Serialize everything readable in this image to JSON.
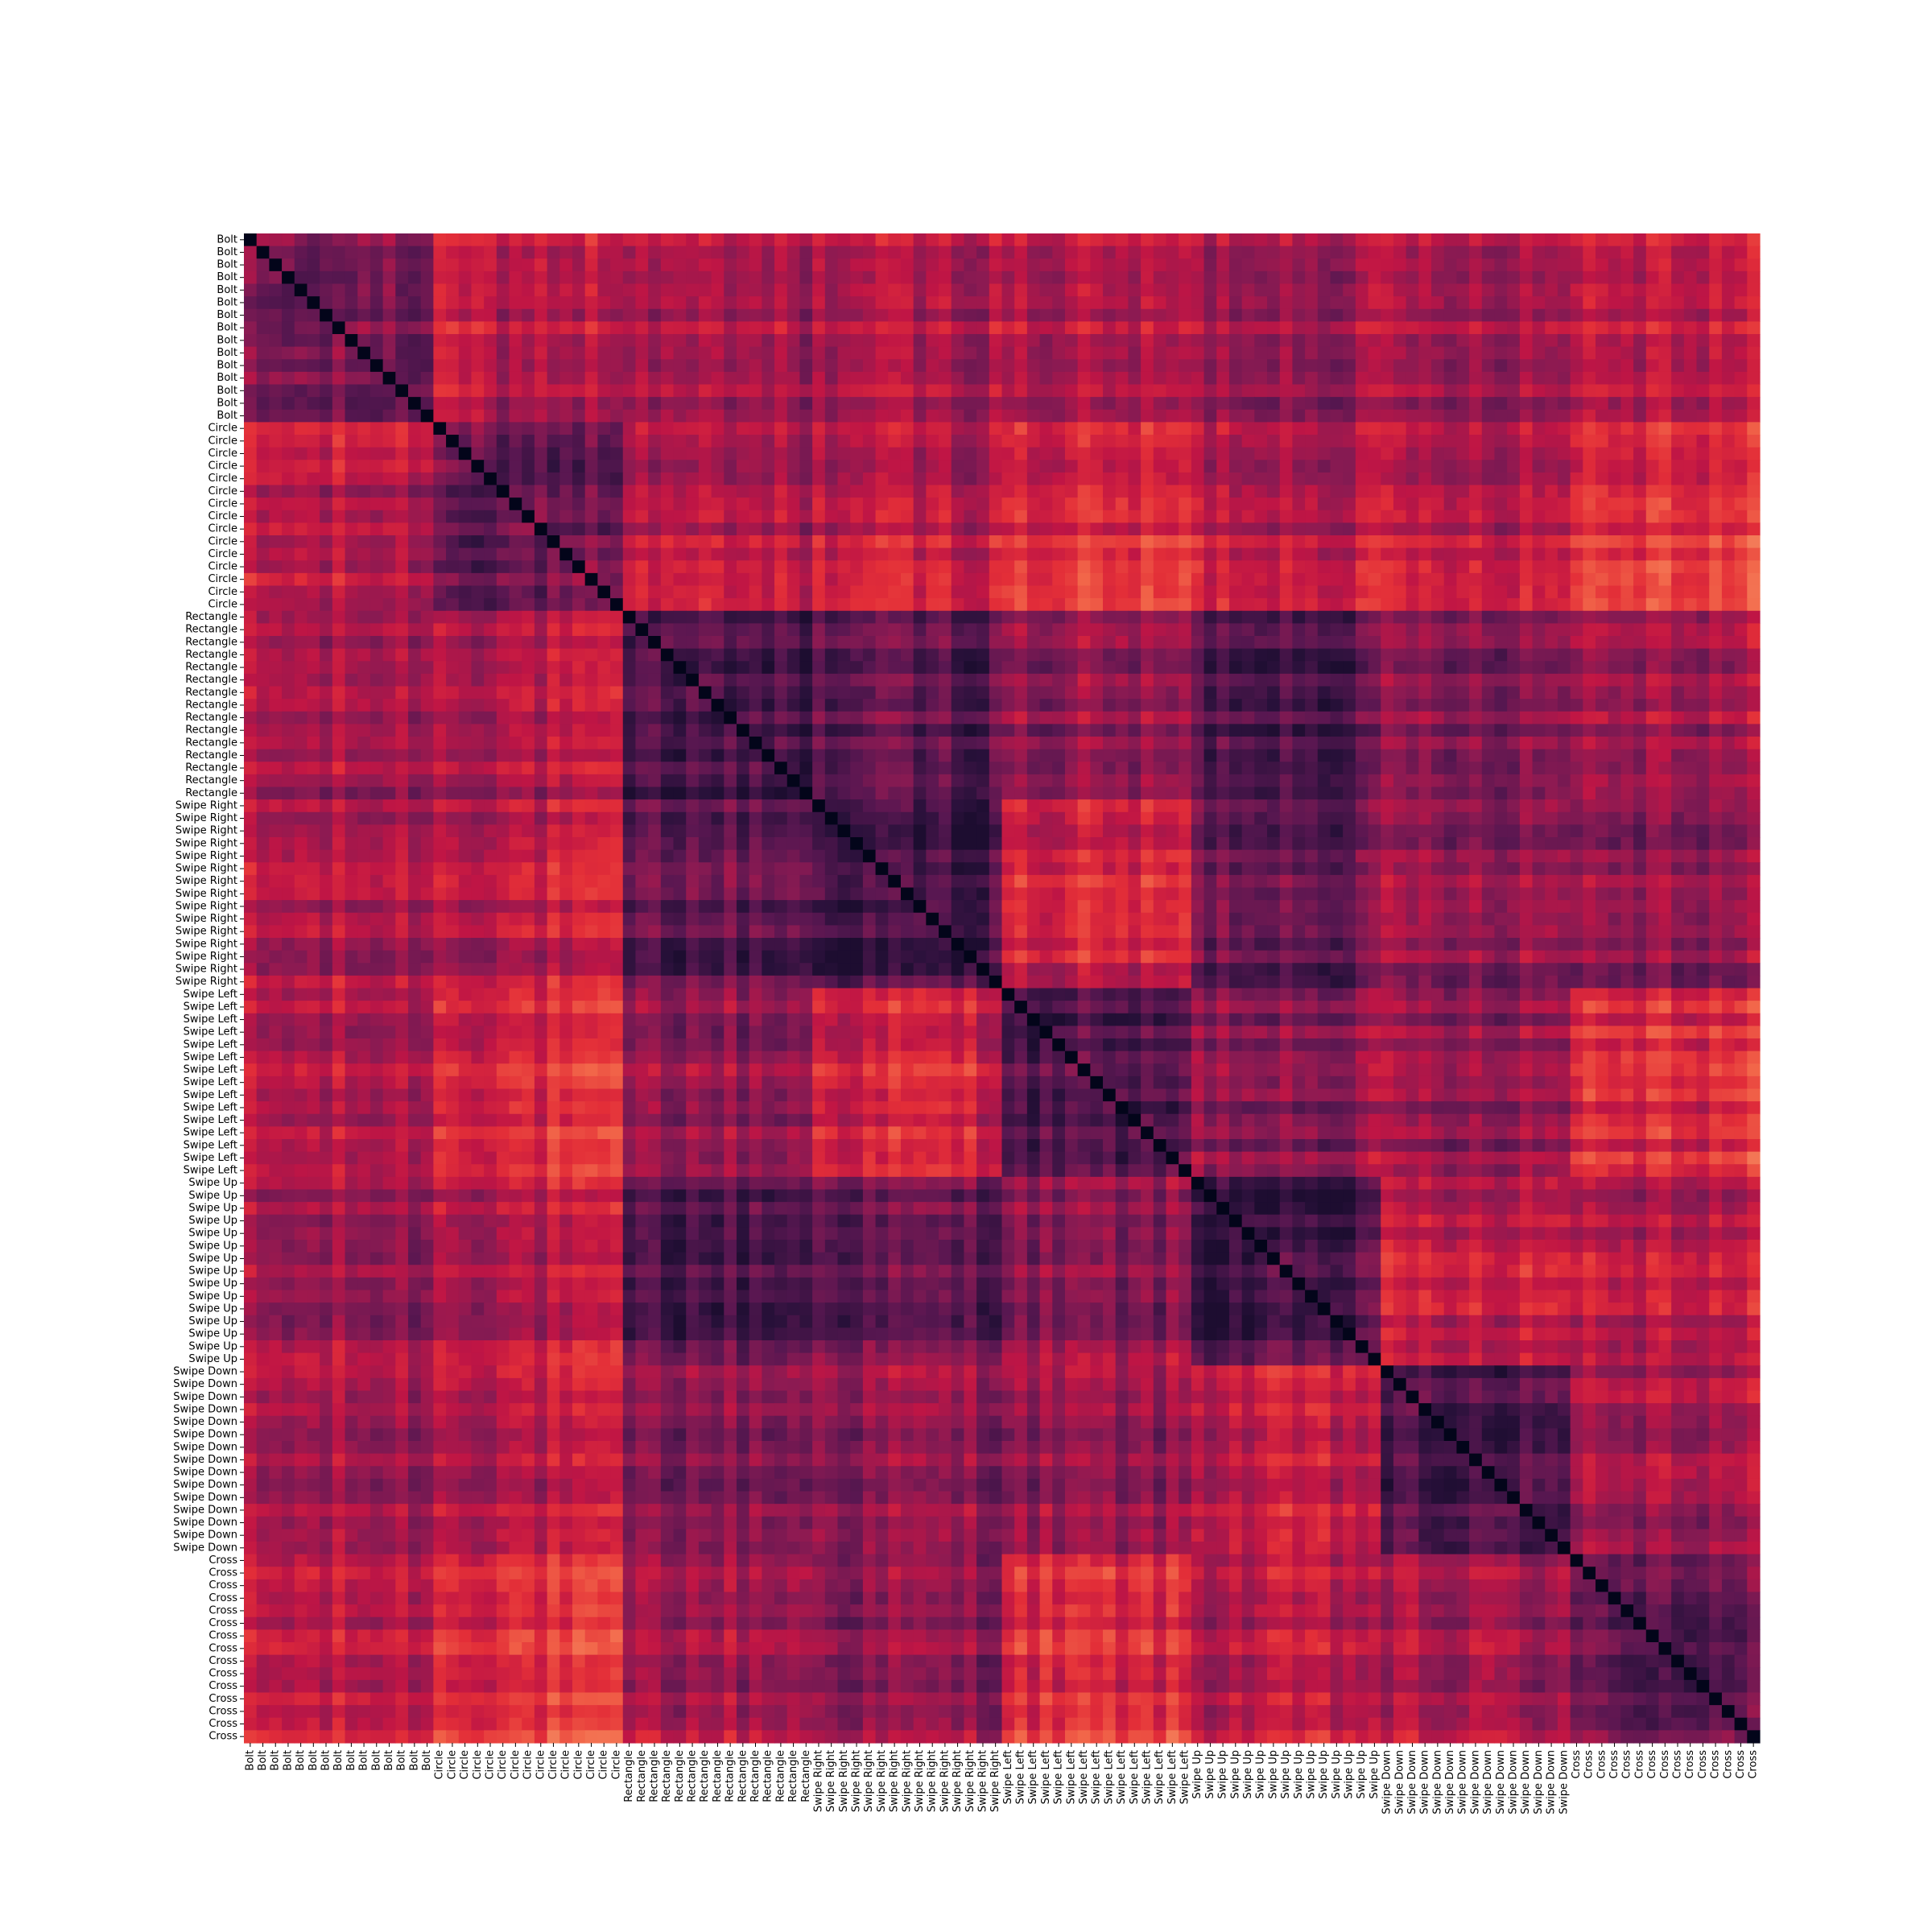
{
  "chart_data": {
    "type": "heatmap",
    "title": "",
    "xlabel": "",
    "ylabel": "",
    "colormap": "rocket",
    "colorbar": false,
    "grid": false,
    "value_range": [
      0,
      1
    ],
    "groups": [
      {
        "label": "Bolt",
        "count": 15
      },
      {
        "label": "Circle",
        "count": 15
      },
      {
        "label": "Rectangle",
        "count": 15
      },
      {
        "label": "Swipe Right",
        "count": 15
      },
      {
        "label": "Swipe Left",
        "count": 15
      },
      {
        "label": "Swipe Up",
        "count": 15
      },
      {
        "label": "Swipe Down",
        "count": 15
      },
      {
        "label": "Cross",
        "count": 15
      }
    ],
    "group_levels": [
      [
        0.3,
        0.48,
        0.42,
        0.45,
        0.45,
        0.42,
        0.43,
        0.52
      ],
      [
        0.52,
        0.3,
        0.46,
        0.5,
        0.58,
        0.5,
        0.5,
        0.63
      ],
      [
        0.42,
        0.46,
        0.2,
        0.26,
        0.38,
        0.24,
        0.37,
        0.45
      ],
      [
        0.43,
        0.5,
        0.26,
        0.18,
        0.55,
        0.3,
        0.4,
        0.4
      ],
      [
        0.42,
        0.58,
        0.38,
        0.55,
        0.2,
        0.38,
        0.4,
        0.6
      ],
      [
        0.42,
        0.5,
        0.24,
        0.3,
        0.38,
        0.2,
        0.52,
        0.5
      ],
      [
        0.4,
        0.5,
        0.37,
        0.4,
        0.4,
        0.52,
        0.22,
        0.45
      ],
      [
        0.52,
        0.63,
        0.45,
        0.4,
        0.6,
        0.5,
        0.45,
        0.28
      ]
    ]
  },
  "labels": {
    "rows": [
      "Bolt",
      "Bolt",
      "Bolt",
      "Bolt",
      "Bolt",
      "Bolt",
      "Bolt",
      "Bolt",
      "Bolt",
      "Bolt",
      "Bolt",
      "Bolt",
      "Bolt",
      "Bolt",
      "Bolt",
      "Circle",
      "Circle",
      "Circle",
      "Circle",
      "Circle",
      "Circle",
      "Circle",
      "Circle",
      "Circle",
      "Circle",
      "Circle",
      "Circle",
      "Circle",
      "Circle",
      "Circle",
      "Rectangle",
      "Rectangle",
      "Rectangle",
      "Rectangle",
      "Rectangle",
      "Rectangle",
      "Rectangle",
      "Rectangle",
      "Rectangle",
      "Rectangle",
      "Rectangle",
      "Rectangle",
      "Rectangle",
      "Rectangle",
      "Rectangle",
      "Swipe Right",
      "Swipe Right",
      "Swipe Right",
      "Swipe Right",
      "Swipe Right",
      "Swipe Right",
      "Swipe Right",
      "Swipe Right",
      "Swipe Right",
      "Swipe Right",
      "Swipe Right",
      "Swipe Right",
      "Swipe Right",
      "Swipe Right",
      "Swipe Right",
      "Swipe Left",
      "Swipe Left",
      "Swipe Left",
      "Swipe Left",
      "Swipe Left",
      "Swipe Left",
      "Swipe Left",
      "Swipe Left",
      "Swipe Left",
      "Swipe Left",
      "Swipe Left",
      "Swipe Left",
      "Swipe Left",
      "Swipe Left",
      "Swipe Left",
      "Swipe Up",
      "Swipe Up",
      "Swipe Up",
      "Swipe Up",
      "Swipe Up",
      "Swipe Up",
      "Swipe Up",
      "Swipe Up",
      "Swipe Up",
      "Swipe Up",
      "Swipe Up",
      "Swipe Up",
      "Swipe Up",
      "Swipe Up",
      "Swipe Up",
      "Swipe Down",
      "Swipe Down",
      "Swipe Down",
      "Swipe Down",
      "Swipe Down",
      "Swipe Down",
      "Swipe Down",
      "Swipe Down",
      "Swipe Down",
      "Swipe Down",
      "Swipe Down",
      "Swipe Down",
      "Swipe Down",
      "Swipe Down",
      "Swipe Down",
      "Cross",
      "Cross",
      "Cross",
      "Cross",
      "Cross",
      "Cross",
      "Cross",
      "Cross",
      "Cross",
      "Cross",
      "Cross",
      "Cross",
      "Cross",
      "Cross",
      "Cross"
    ],
    "cols": [
      "Bolt",
      "Bolt",
      "Bolt",
      "Bolt",
      "Bolt",
      "Bolt",
      "Bolt",
      "Bolt",
      "Bolt",
      "Bolt",
      "Bolt",
      "Bolt",
      "Bolt",
      "Bolt",
      "Bolt",
      "Circle",
      "Circle",
      "Circle",
      "Circle",
      "Circle",
      "Circle",
      "Circle",
      "Circle",
      "Circle",
      "Circle",
      "Circle",
      "Circle",
      "Circle",
      "Circle",
      "Circle",
      "Rectangle",
      "Rectangle",
      "Rectangle",
      "Rectangle",
      "Rectangle",
      "Rectangle",
      "Rectangle",
      "Rectangle",
      "Rectangle",
      "Rectangle",
      "Rectangle",
      "Rectangle",
      "Rectangle",
      "Rectangle",
      "Rectangle",
      "Swipe Right",
      "Swipe Right",
      "Swipe Right",
      "Swipe Right",
      "Swipe Right",
      "Swipe Right",
      "Swipe Right",
      "Swipe Right",
      "Swipe Right",
      "Swipe Right",
      "Swipe Right",
      "Swipe Right",
      "Swipe Right",
      "Swipe Right",
      "Swipe Right",
      "Swipe Left",
      "Swipe Left",
      "Swipe Left",
      "Swipe Left",
      "Swipe Left",
      "Swipe Left",
      "Swipe Left",
      "Swipe Left",
      "Swipe Left",
      "Swipe Left",
      "Swipe Left",
      "Swipe Left",
      "Swipe Left",
      "Swipe Left",
      "Swipe Left",
      "Swipe Up",
      "Swipe Up",
      "Swipe Up",
      "Swipe Up",
      "Swipe Up",
      "Swipe Up",
      "Swipe Up",
      "Swipe Up",
      "Swipe Up",
      "Swipe Up",
      "Swipe Up",
      "Swipe Up",
      "Swipe Up",
      "Swipe Up",
      "Swipe Up",
      "Swipe Down",
      "Swipe Down",
      "Swipe Down",
      "Swipe Down",
      "Swipe Down",
      "Swipe Down",
      "Swipe Down",
      "Swipe Down",
      "Swipe Down",
      "Swipe Down",
      "Swipe Down",
      "Swipe Down",
      "Swipe Down",
      "Swipe Down",
      "Swipe Down",
      "Cross",
      "Cross",
      "Cross",
      "Cross",
      "Cross",
      "Cross",
      "Cross",
      "Cross",
      "Cross",
      "Cross",
      "Cross",
      "Cross",
      "Cross",
      "Cross",
      "Cross"
    ]
  }
}
